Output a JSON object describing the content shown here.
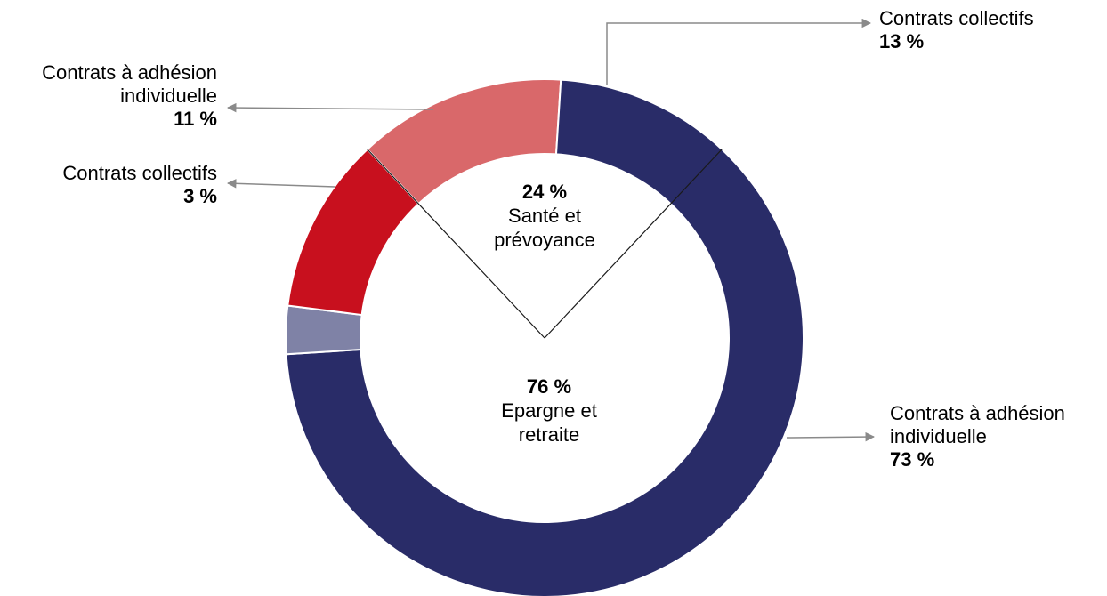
{
  "chart_data": {
    "type": "pie",
    "style": "donut",
    "title": "",
    "groups": [
      {
        "name": "Epargne et retraite",
        "value_label": "76 %",
        "value": 76
      },
      {
        "name": "Santé et prévoyance",
        "value_label": "24 %",
        "value": 24
      }
    ],
    "slices": [
      {
        "group": "Epargne et retraite",
        "name": "Contrats à adhésion individuelle",
        "value": 73,
        "value_label": "73 %",
        "color": "#292c68"
      },
      {
        "group": "Epargne et retraite",
        "name": "Contrats collectifs",
        "value": 3,
        "value_label": "3 %",
        "color": "#7f82a6"
      },
      {
        "group": "Santé et prévoyance",
        "name": "Contrats à adhésion individuelle",
        "value": 11,
        "value_label": "11 %",
        "color": "#c8101e"
      },
      {
        "group": "Santé et prévoyance",
        "name": "Contrats collectifs",
        "value": 13,
        "value_label": "13 %",
        "color": "#d9686a"
      }
    ]
  },
  "labels": {
    "coll_sante": {
      "line1": "Contrats collectifs",
      "pct": "13 %"
    },
    "indiv_sante": {
      "line1": "Contrats à adhésion",
      "line2": "individuelle",
      "pct": "11 %"
    },
    "coll_epargne": {
      "line1": "Contrats collectifs",
      "pct": "3 %"
    },
    "indiv_epargne": {
      "line1": "Contrats à adhésion",
      "line2": "individuelle",
      "pct": "73 %"
    }
  },
  "center": {
    "sante": {
      "pct": "24 %",
      "line1": "Santé et",
      "line2": "prévoyance"
    },
    "epargne": {
      "pct": "76 %",
      "line1": "Epargne et",
      "line2": "retraite"
    }
  }
}
